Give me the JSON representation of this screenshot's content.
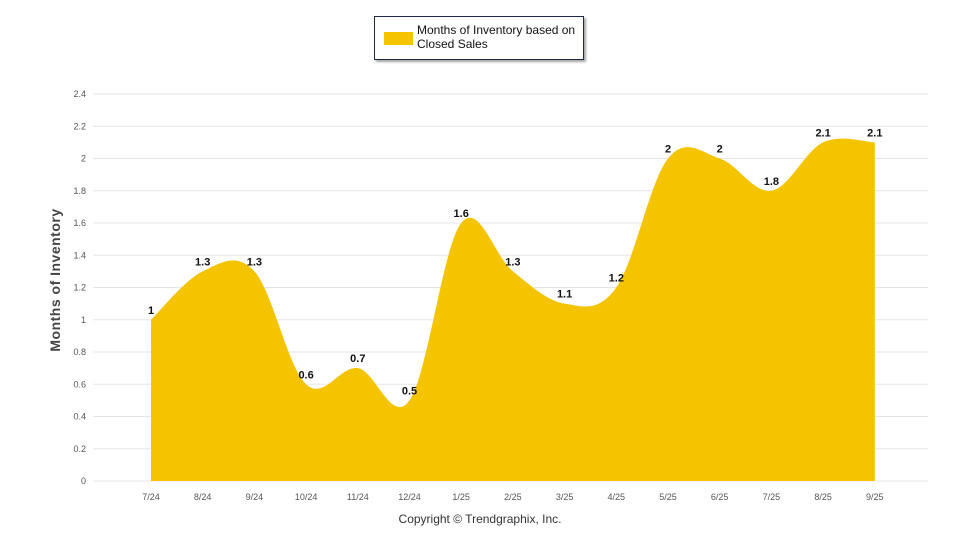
{
  "chart_data": {
    "type": "area",
    "title": "",
    "xlabel": "",
    "ylabel": "Months of Inventory",
    "ylim": [
      0,
      2.4
    ],
    "yticks": [
      "0",
      "0.2",
      "0.4",
      "0.6",
      "0.8",
      "1",
      "1.2",
      "1.4",
      "1.6",
      "1.8",
      "2",
      "2.2",
      "2.4"
    ],
    "grid": true,
    "legend_position": "top-center",
    "categories": [
      "7/24",
      "8/24",
      "9/24",
      "10/24",
      "11/24",
      "12/24",
      "1/25",
      "2/25",
      "3/25",
      "4/25",
      "5/25",
      "6/25",
      "7/25",
      "8/25",
      "9/25"
    ],
    "series": [
      {
        "name": "Months of Inventory based on Closed Sales",
        "values": [
          1,
          1.3,
          1.3,
          0.6,
          0.7,
          0.5,
          1.6,
          1.3,
          1.1,
          1.2,
          2,
          2,
          1.8,
          2.1,
          2.1
        ],
        "labels": [
          "1",
          "1.3",
          "1.3",
          "0.6",
          "0.7",
          "0.5",
          "1.6",
          "1.3",
          "1.1",
          "1.2",
          "2",
          "2",
          "1.8",
          "2.1",
          "2.1"
        ],
        "color": "#f5c400"
      }
    ]
  },
  "legend": {
    "label": "Months of Inventory based on Closed Sales"
  },
  "footer": {
    "copyright": "Copyright © Trendgraphix, Inc."
  },
  "colors": {
    "grid": "#e6e6e6",
    "axis_text": "#555555",
    "label_text": "#111111"
  }
}
